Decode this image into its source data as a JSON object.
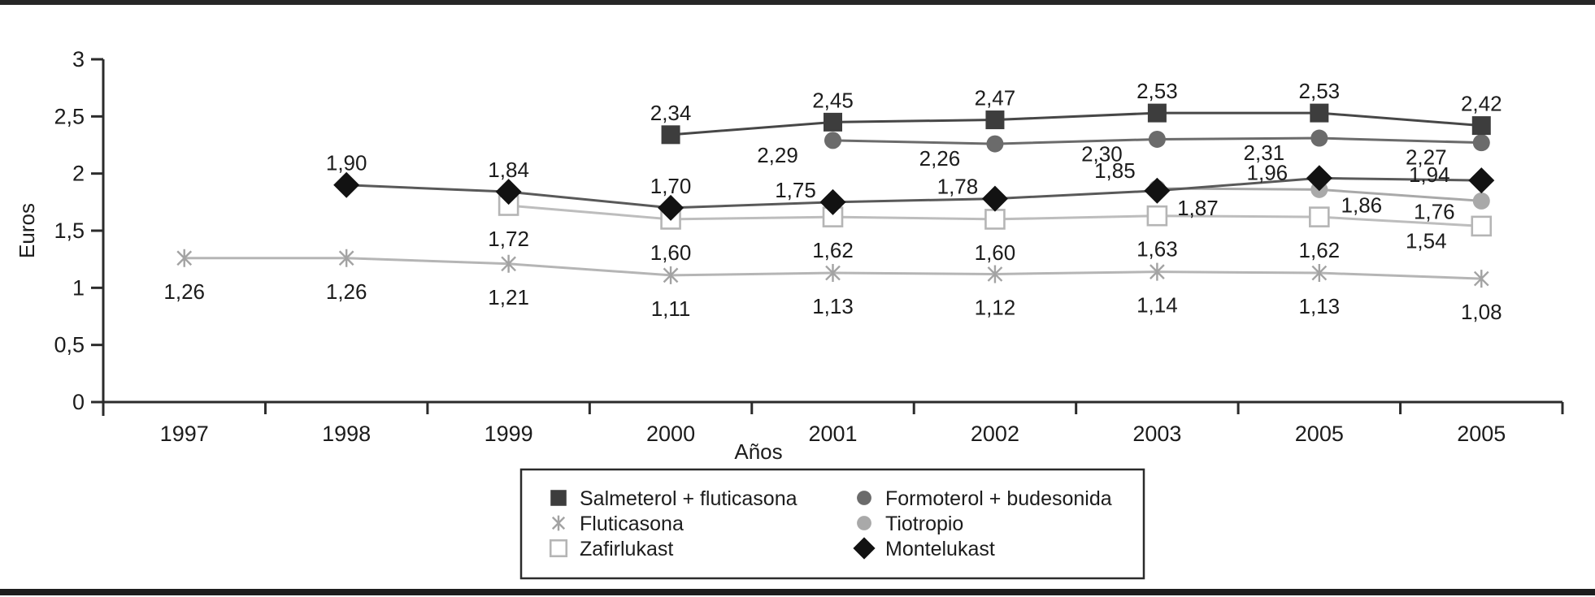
{
  "figure": {
    "background": "#ffffff",
    "rule_color": "#232323"
  },
  "chart_data": {
    "type": "line",
    "title": "",
    "xlabel": "Años",
    "ylabel": "Euros",
    "ylim": [
      0,
      3
    ],
    "grid": false,
    "legend_position": "bottom-center",
    "yticks": [
      {
        "v": 0,
        "label": "0"
      },
      {
        "v": 0.5,
        "label": "0,5"
      },
      {
        "v": 1,
        "label": "1"
      },
      {
        "v": 1.5,
        "label": "1,5"
      },
      {
        "v": 2,
        "label": "2"
      },
      {
        "v": 2.5,
        "label": "2,5"
      },
      {
        "v": 3,
        "label": "3"
      }
    ],
    "categories": [
      "1997",
      "1998",
      "1999",
      "2000",
      "2001",
      "2002",
      "2003",
      "2005",
      "2005"
    ],
    "series": [
      {
        "name": "Salmeterol + fluticasona",
        "marker": "filled-square",
        "marker_color": "#3d3d3d",
        "line_color": "#474747",
        "values": [
          null,
          null,
          null,
          2.34,
          2.45,
          2.47,
          2.53,
          2.53,
          2.42
        ],
        "point_labels": [
          null,
          null,
          null,
          "2,34",
          "2,45",
          "2,47",
          "2,53",
          "2,53",
          "2,42"
        ],
        "label_pos": [
          null,
          null,
          null,
          "above",
          "above",
          "above",
          "above",
          "above",
          "above"
        ]
      },
      {
        "name": "Formoterol + budesonida",
        "marker": "filled-circle",
        "marker_color": "#6b6b6b",
        "line_color": "#6b6b6b",
        "values": [
          null,
          null,
          null,
          null,
          2.29,
          2.26,
          2.3,
          2.31,
          2.27
        ],
        "point_labels": [
          null,
          null,
          null,
          null,
          "2,29",
          "2,26",
          "2,30",
          "2,31",
          "2,27"
        ],
        "label_pos": [
          null,
          null,
          null,
          null,
          "below-left",
          "below-left",
          "below-left",
          "below-left",
          "below-left"
        ]
      },
      {
        "name": "Fluticasona",
        "marker": "asterisk",
        "marker_color": "#a3a3a3",
        "line_color": "#b5b5b5",
        "values": [
          1.26,
          1.26,
          1.21,
          1.11,
          1.13,
          1.12,
          1.14,
          1.13,
          1.08
        ],
        "point_labels": [
          "1,26",
          "1,26",
          "1,21",
          "1,11",
          "1,13",
          "1,12",
          "1,14",
          "1,13",
          "1,08"
        ],
        "label_pos": [
          "below",
          "below",
          "below",
          "below",
          "below",
          "below",
          "below",
          "below",
          "below"
        ]
      },
      {
        "name": "Tiotropio",
        "marker": "light-circle",
        "marker_color": "#a9a9a9",
        "line_color": "#a9a9a9",
        "values": [
          null,
          null,
          null,
          null,
          null,
          null,
          1.87,
          1.86,
          1.76
        ],
        "point_labels": [
          null,
          null,
          null,
          null,
          null,
          null,
          "1,87",
          "1,86",
          "1,76"
        ],
        "label_pos": [
          null,
          null,
          null,
          null,
          null,
          null,
          "below-right",
          "right-below",
          "left-below"
        ]
      },
      {
        "name": "Zafirlukast",
        "marker": "open-square",
        "marker_color": "#b5b5b5",
        "line_color": "#bdbdbd",
        "values": [
          null,
          null,
          1.72,
          1.6,
          1.62,
          1.6,
          1.63,
          1.62,
          1.54
        ],
        "point_labels": [
          null,
          null,
          "1,72",
          "1,60",
          "1,62",
          "1,60",
          "1,63",
          "1,62",
          "1,54"
        ],
        "label_pos": [
          null,
          null,
          "below",
          "below",
          "below",
          "below",
          "below",
          "below",
          "below-left"
        ]
      },
      {
        "name": "Montelukast",
        "marker": "filled-diamond",
        "marker_color": "#121212",
        "line_color": "#595959",
        "values": [
          null,
          1.9,
          1.84,
          1.7,
          1.75,
          1.78,
          1.85,
          1.96,
          1.94
        ],
        "point_labels": [
          null,
          "1,90",
          "1,84",
          "1,70",
          "1,75",
          "1,78",
          "1,85",
          "1,96",
          "1,94"
        ],
        "label_pos": [
          null,
          "above",
          "above",
          "above",
          "above-left",
          "above-left",
          "above-left-far",
          "left",
          "left"
        ]
      }
    ],
    "draw_order": [
      2,
      4,
      3,
      1,
      0,
      5
    ],
    "legend_columns": [
      [
        0,
        2,
        4
      ],
      [
        1,
        3,
        5
      ]
    ]
  }
}
